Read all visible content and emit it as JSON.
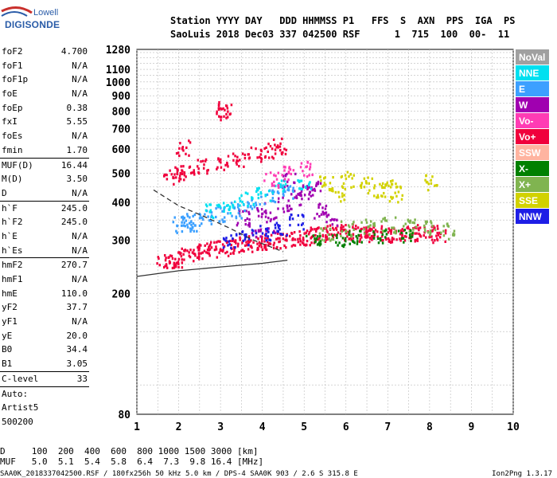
{
  "logo": {
    "line1": "Lowell",
    "line2": "DIGISONDE"
  },
  "header": {
    "line1": "Station YYYY DAY   DDD HHMMSS P1   FFS  S  AXN  PPS  IGA  PS",
    "line2": "SaoLuis 2018 Dec03 337 042500 RSF      1  715  100  00-  11"
  },
  "params": {
    "group1": [
      {
        "label": "foF2",
        "value": "4.700"
      },
      {
        "label": "foF1",
        "value": "N/A"
      },
      {
        "label": "foF1p",
        "value": "N/A"
      },
      {
        "label": "foE",
        "value": "N/A"
      },
      {
        "label": "foEp",
        "value": "0.38"
      },
      {
        "label": "fxI",
        "value": "5.55"
      },
      {
        "label": "foEs",
        "value": "N/A"
      },
      {
        "label": "fmin",
        "value": "1.70"
      }
    ],
    "group2": [
      {
        "label": "MUF(D)",
        "value": "16.44"
      },
      {
        "label": "M(D)",
        "value": "3.50"
      },
      {
        "label": "D",
        "value": "N/A"
      }
    ],
    "group3": [
      {
        "label": "h`F",
        "value": "245.0"
      },
      {
        "label": "h`F2",
        "value": "245.0"
      },
      {
        "label": "h`E",
        "value": "N/A"
      },
      {
        "label": "h`Es",
        "value": "N/A"
      }
    ],
    "group4": [
      {
        "label": "hmF2",
        "value": "270.7"
      },
      {
        "label": "hmF1",
        "value": "N/A"
      },
      {
        "label": "hmE",
        "value": "110.0"
      },
      {
        "label": "yF2",
        "value": "37.7"
      },
      {
        "label": "yF1",
        "value": "N/A"
      },
      {
        "label": "yE",
        "value": "20.0"
      },
      {
        "label": "B0",
        "value": "34.4"
      },
      {
        "label": "B1",
        "value": "3.05"
      }
    ],
    "clevel": {
      "label": "C-level",
      "value": "33"
    },
    "auto": [
      "Auto:",
      "Artist5",
      "500200"
    ]
  },
  "legend": [
    {
      "label": "NoVal",
      "color": "#a0a0a0"
    },
    {
      "label": "NNE",
      "color": "#00e0f0"
    },
    {
      "label": "E",
      "color": "#3ca0ff"
    },
    {
      "label": "W",
      "color": "#a000b0"
    },
    {
      "label": "Vo-",
      "color": "#ff3cb4"
    },
    {
      "label": "Vo+",
      "color": "#f0003c"
    },
    {
      "label": "SSW",
      "color": "#ffb4a0"
    },
    {
      "label": "X-",
      "color": "#008000"
    },
    {
      "label": "X+",
      "color": "#80b450"
    },
    {
      "label": "SSE",
      "color": "#d2d200"
    },
    {
      "label": "NNW",
      "color": "#1e1ee6"
    }
  ],
  "footer": {
    "d_line": "D     100  200  400  600  800 1000 1500 3000 [km]",
    "muf_line": "MUF   5.0  5.1  5.4  5.8  6.4  7.3  9.8 16.4 [MHz]",
    "file_line": "SAA0K_2018337042500.RSF / 180fx256h 50 kHz 5.0 km / DPS-4 SAA0K 903 / 2.6 S 315.8 E",
    "version": "Ion2Png 1.3.17"
  },
  "chart_data": {
    "type": "scatter",
    "title": "",
    "xlabel": "",
    "ylabel": "",
    "xlim": [
      1,
      10
    ],
    "ylim": [
      80,
      1280
    ],
    "yscale": "log",
    "x_ticks": [
      1,
      2,
      3,
      4,
      5,
      6,
      7,
      8,
      9,
      10
    ],
    "y_ticks": [
      80,
      200,
      300,
      400,
      500,
      600,
      700,
      800,
      900,
      1000,
      1100,
      1280
    ],
    "grid": "dashed",
    "legend_position": "right",
    "series": [
      {
        "name": "Vo+",
        "points": [
          [
            1.6,
            255
          ],
          [
            1.8,
            258
          ],
          [
            2.0,
            262
          ],
          [
            2.2,
            270
          ],
          [
            2.4,
            275
          ],
          [
            2.6,
            280
          ],
          [
            2.8,
            282
          ],
          [
            3.0,
            285
          ],
          [
            3.2,
            288
          ],
          [
            3.4,
            290
          ],
          [
            3.6,
            292
          ],
          [
            3.8,
            295
          ],
          [
            4.0,
            298
          ],
          [
            4.2,
            300
          ],
          [
            4.4,
            302
          ],
          [
            4.6,
            305
          ],
          [
            4.8,
            308
          ],
          [
            5.0,
            310
          ],
          [
            5.2,
            315
          ],
          [
            5.4,
            318
          ],
          [
            5.6,
            320
          ],
          [
            5.8,
            322
          ],
          [
            6.0,
            325
          ],
          [
            6.2,
            320
          ],
          [
            6.4,
            318
          ],
          [
            6.6,
            322
          ],
          [
            6.8,
            320
          ],
          [
            7.0,
            318
          ],
          [
            7.2,
            316
          ],
          [
            7.4,
            320
          ],
          [
            7.6,
            322
          ],
          [
            7.8,
            318
          ],
          [
            8.0,
            320
          ],
          [
            8.2,
            315
          ],
          [
            1.8,
            490
          ],
          [
            2.0,
            500
          ],
          [
            2.2,
            510
          ],
          [
            2.6,
            530
          ],
          [
            3.0,
            545
          ],
          [
            3.4,
            560
          ],
          [
            3.8,
            580
          ],
          [
            4.2,
            600
          ],
          [
            4.4,
            620
          ],
          [
            3.0,
            800
          ],
          [
            3.1,
            820
          ],
          [
            2.1,
            610
          ]
        ]
      },
      {
        "name": "W",
        "points": [
          [
            3.5,
            360
          ],
          [
            4.0,
            380
          ],
          [
            4.5,
            400
          ],
          [
            4.8,
            420
          ],
          [
            5.0,
            440
          ],
          [
            5.2,
            450
          ],
          [
            5.4,
            380
          ],
          [
            5.6,
            360
          ],
          [
            4.6,
            480
          ],
          [
            3.8,
            330
          ],
          [
            4.2,
            340
          ]
        ]
      },
      {
        "name": "E",
        "points": [
          [
            2.0,
            340
          ],
          [
            2.2,
            350
          ],
          [
            2.4,
            345
          ],
          [
            2.6,
            360
          ],
          [
            3.0,
            370
          ],
          [
            3.4,
            380
          ],
          [
            3.8,
            400
          ],
          [
            4.2,
            420
          ],
          [
            4.6,
            440
          ]
        ]
      },
      {
        "name": "NNE",
        "points": [
          [
            2.8,
            380
          ],
          [
            3.2,
            395
          ],
          [
            3.6,
            410
          ],
          [
            4.0,
            430
          ],
          [
            4.4,
            455
          ],
          [
            5.0,
            470
          ]
        ]
      },
      {
        "name": "SSE",
        "points": [
          [
            5.5,
            470
          ],
          [
            6.0,
            480
          ],
          [
            6.5,
            460
          ],
          [
            7.0,
            450
          ],
          [
            7.2,
            430
          ],
          [
            6.8,
            440
          ],
          [
            5.8,
            430
          ],
          [
            8.0,
            470
          ]
        ]
      },
      {
        "name": "X+",
        "points": [
          [
            5.5,
            320
          ],
          [
            6.0,
            330
          ],
          [
            6.5,
            335
          ],
          [
            7.0,
            340
          ],
          [
            7.5,
            335
          ],
          [
            8.0,
            330
          ],
          [
            8.4,
            325
          ]
        ]
      },
      {
        "name": "X-",
        "points": [
          [
            5.2,
            300
          ],
          [
            5.8,
            305
          ],
          [
            6.2,
            310
          ],
          [
            6.8,
            312
          ],
          [
            7.4,
            310
          ]
        ]
      },
      {
        "name": "NNW",
        "points": [
          [
            3.2,
            300
          ],
          [
            3.6,
            310
          ],
          [
            4.0,
            320
          ],
          [
            4.4,
            330
          ],
          [
            4.8,
            350
          ]
        ]
      },
      {
        "name": "Vo-",
        "points": [
          [
            4.2,
            480
          ],
          [
            4.6,
            500
          ],
          [
            5.0,
            520
          ]
        ]
      }
    ],
    "curves": [
      {
        "style": "solid",
        "points": [
          [
            1.0,
            228
          ],
          [
            2.0,
            238
          ],
          [
            3.0,
            245
          ],
          [
            4.0,
            252
          ],
          [
            4.6,
            258
          ]
        ]
      },
      {
        "style": "dashed",
        "points": [
          [
            1.4,
            440
          ],
          [
            2.0,
            390
          ],
          [
            2.6,
            360
          ],
          [
            3.2,
            330
          ],
          [
            3.8,
            300
          ],
          [
            4.5,
            275
          ]
        ]
      }
    ]
  }
}
